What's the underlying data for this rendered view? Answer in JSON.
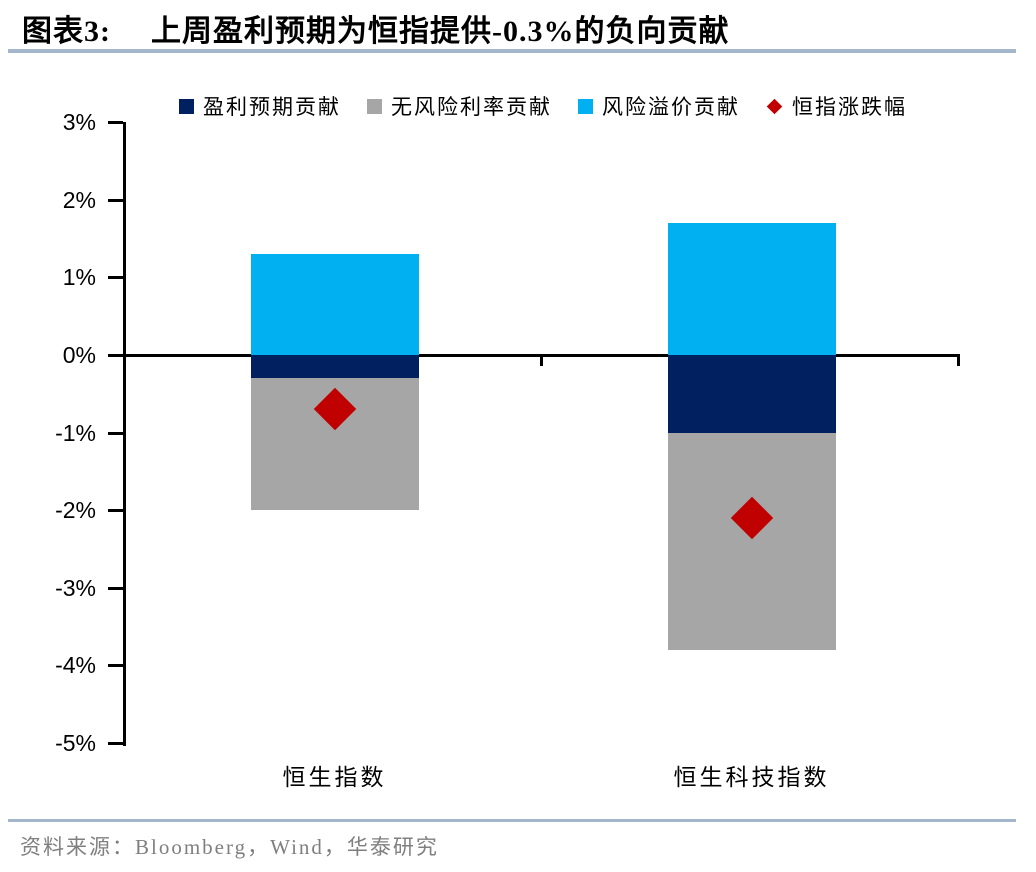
{
  "title": {
    "prefix": "图表3:",
    "text": "上周盈利预期为恒指提供-0.3%的负向贡献"
  },
  "footer": {
    "text": "资料来源：Bloomberg，Wind，华泰研究"
  },
  "colors": {
    "divider": "#a3b6cc",
    "axis": "#000000",
    "footer_text": "#7f7f7f"
  },
  "chart_data": {
    "type": "bar",
    "subtype": "stacked-bars-with-diamond-markers",
    "title": "上周盈利预期为恒指提供-0.3%的负向贡献",
    "categories": [
      "恒生指数",
      "恒生科技指数"
    ],
    "series": [
      {
        "name": "盈利预期贡献",
        "type": "bar",
        "color": "#002060",
        "values": [
          -0.3,
          -1.0
        ]
      },
      {
        "name": "无风险利率贡献",
        "type": "bar",
        "color": "#a6a6a6",
        "values": [
          -1.7,
          -2.8
        ]
      },
      {
        "name": "风险溢价贡献",
        "type": "bar",
        "color": "#00b0f0",
        "values": [
          1.3,
          1.7
        ]
      },
      {
        "name": "恒指涨跌幅",
        "type": "diamond",
        "color": "#c00000",
        "values": [
          -0.7,
          -2.1
        ]
      }
    ],
    "ylabel": "",
    "xlabel": "",
    "ylim": [
      -5,
      3
    ],
    "ytick_step": 1,
    "ytick_suffix": "%",
    "grid": false,
    "legend_position": "top"
  }
}
